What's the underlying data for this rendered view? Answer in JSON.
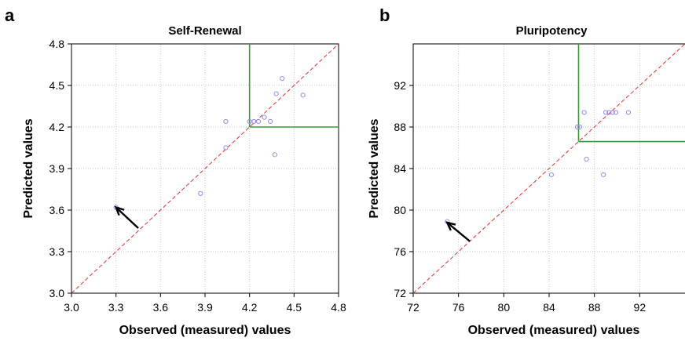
{
  "chart_data": [
    {
      "panel": "a",
      "type": "scatter",
      "title": "Self-Renewal",
      "xlabel": "Observed (measured) values",
      "ylabel": "Predicted values",
      "xlim": [
        3.0,
        4.8
      ],
      "ylim": [
        3.0,
        4.8
      ],
      "xticks": [
        "3.0",
        "3.3",
        "3.6",
        "3.9",
        "4.2",
        "4.5",
        "4.8"
      ],
      "yticks": [
        "3.0",
        "3.3",
        "3.6",
        "3.9",
        "4.2",
        "4.5",
        "4.8"
      ],
      "grid": true,
      "diagonal": "y = x (red dashed)",
      "threshold": {
        "x": 4.2,
        "y": 4.2
      },
      "arrow": {
        "from": [
          3.45,
          3.47
        ],
        "to": [
          3.3,
          3.62
        ]
      },
      "series": [
        {
          "points": [
            [
              3.3,
              3.62
            ],
            [
              3.87,
              3.72
            ],
            [
              4.04,
              4.05
            ],
            [
              4.04,
              4.24
            ],
            [
              4.2,
              4.24
            ],
            [
              4.23,
              4.24
            ],
            [
              4.26,
              4.24
            ],
            [
              4.3,
              4.27
            ],
            [
              4.34,
              4.24
            ],
            [
              4.37,
              4.0
            ],
            [
              4.38,
              4.44
            ],
            [
              4.42,
              4.55
            ],
            [
              4.56,
              4.43
            ]
          ]
        }
      ],
      "colors": {
        "points": "#8f8fe8",
        "diagonal": "#e03030",
        "threshold": "#3a9a3a",
        "grid": "#c8c8c8"
      }
    },
    {
      "panel": "b",
      "type": "scatter",
      "title": "Pluripotency",
      "xlabel": "Observed (measured) values",
      "ylabel": "Predicted values",
      "xlim": [
        72,
        96
      ],
      "ylim": [
        72,
        96
      ],
      "xticks": [
        "72",
        "76",
        "80",
        "84",
        "88",
        "92"
      ],
      "yticks": [
        "72",
        "76",
        "80",
        "84",
        "88",
        "92"
      ],
      "grid": true,
      "diagonal": "y = x (red dashed)",
      "threshold": {
        "x": 86.6,
        "y": 86.6
      },
      "arrow": {
        "from": [
          77.0,
          77.0
        ],
        "to": [
          75.0,
          78.8
        ]
      },
      "series": [
        {
          "points": [
            [
              75.0,
              78.9
            ],
            [
              84.2,
              83.4
            ],
            [
              86.5,
              88.0
            ],
            [
              86.7,
              88.0
            ],
            [
              87.1,
              89.4
            ],
            [
              87.3,
              84.9
            ],
            [
              88.8,
              83.4
            ],
            [
              89.0,
              89.4
            ],
            [
              89.3,
              89.4
            ],
            [
              89.6,
              89.4
            ],
            [
              89.9,
              89.4
            ],
            [
              91.0,
              89.4
            ]
          ]
        }
      ],
      "colors": {
        "points": "#8f8fe8",
        "diagonal": "#e03030",
        "threshold": "#3a9a3a",
        "grid": "#c8c8c8"
      }
    }
  ]
}
